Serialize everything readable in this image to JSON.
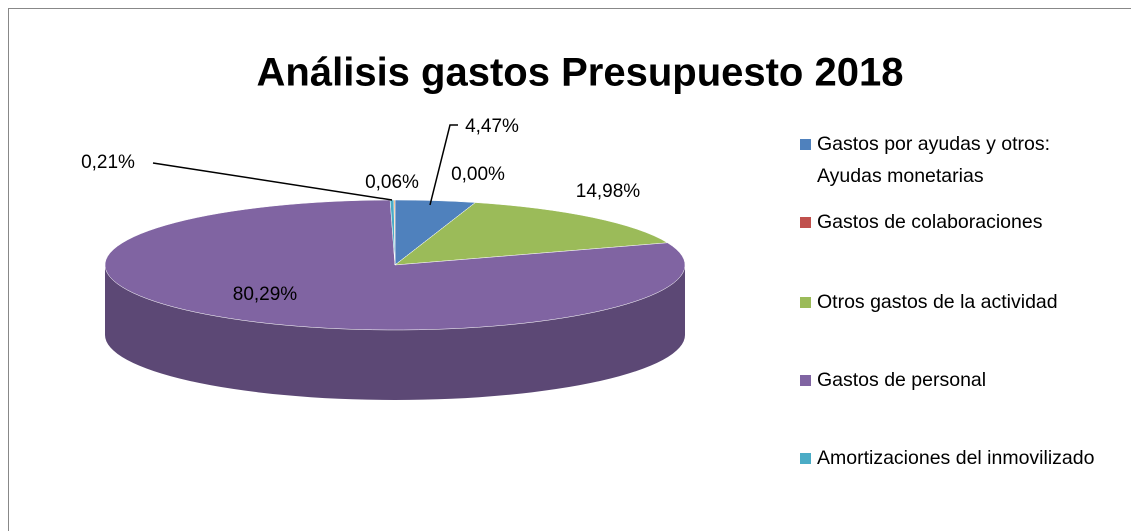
{
  "chart_data": {
    "type": "pie",
    "title": "Análisis gastos Presupuesto 2018",
    "categories": [
      "Gastos por ayudas y otros: Ayudas monetarias",
      "Gastos de colaboraciones",
      "Otros gastos de la actividad",
      "Gastos de personal",
      "Amortizaciones del inmovilizado",
      null
    ],
    "values": [
      4.47,
      0.0,
      14.98,
      80.29,
      0.21,
      0.06
    ],
    "value_labels": [
      "4,47%",
      "0,00%",
      "14,98%",
      "80,29%",
      "0,21%",
      "0,06%"
    ],
    "colors": [
      "#4f81bd",
      "#c0504d",
      "#9bbb59",
      "#8064a2",
      "#4bacc6",
      "#f79646"
    ],
    "legend": "right"
  }
}
